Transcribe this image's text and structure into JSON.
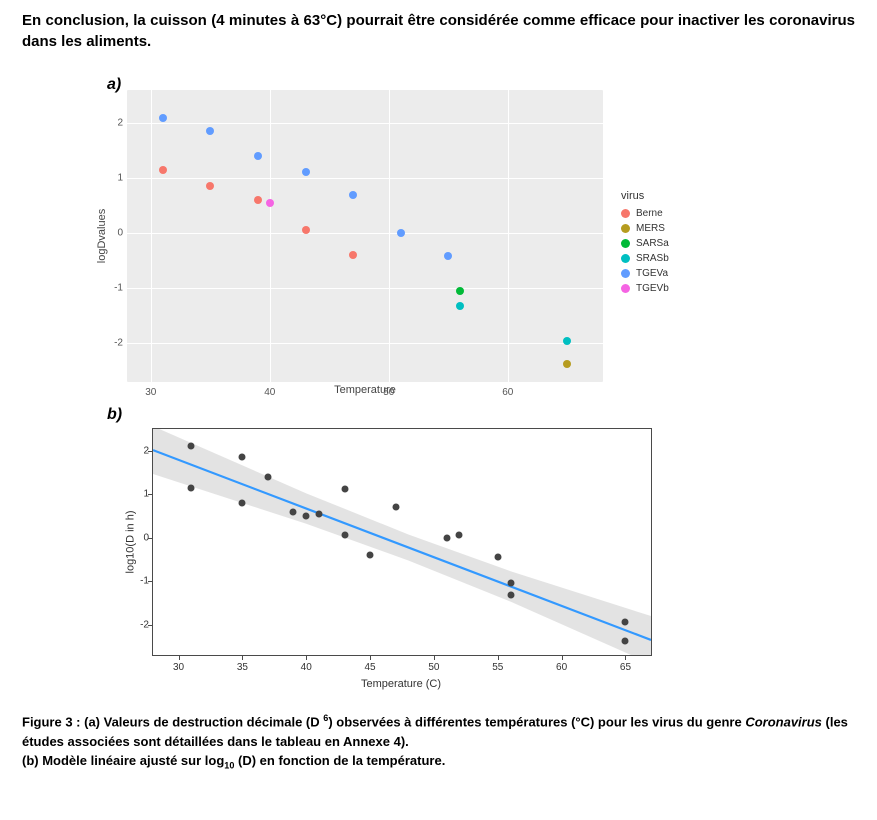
{
  "conclusion_text": "En conclusion, la cuisson (4 minutes à 63°C) pourrait être considérée comme efficace pour inactiver les coronavirus dans les aliments.",
  "panel_a_label": "a)",
  "panel_b_label": "b)",
  "chart_a": {
    "type": "scatter",
    "x_axis_title": "Temperature",
    "y_axis_title": "logDvalues",
    "background_color": "#ececec",
    "gridline_color": "#ffffff",
    "point_radius": 4,
    "xlim": [
      28,
      68
    ],
    "ylim": [
      -2.7,
      2.6
    ],
    "x_ticks": [
      30,
      40,
      50,
      60
    ],
    "y_ticks": [
      -2,
      -1,
      0,
      1,
      2
    ],
    "legend_title": "virus",
    "series": [
      {
        "name": "Berne",
        "color": "#f7776b"
      },
      {
        "name": "MERS",
        "color": "#b69c1f"
      },
      {
        "name": "SARSa",
        "color": "#01ba38"
      },
      {
        "name": "SRASb",
        "color": "#00bfc1"
      },
      {
        "name": "TGEVa",
        "color": "#619cff"
      },
      {
        "name": "TGEVb",
        "color": "#f564e3"
      }
    ],
    "points": [
      {
        "x": 31,
        "y": 2.1,
        "color": "#619cff"
      },
      {
        "x": 31,
        "y": 1.15,
        "color": "#f7776b"
      },
      {
        "x": 35,
        "y": 1.85,
        "color": "#619cff"
      },
      {
        "x": 35,
        "y": 0.85,
        "color": "#f7776b"
      },
      {
        "x": 39,
        "y": 1.4,
        "color": "#619cff"
      },
      {
        "x": 39,
        "y": 0.6,
        "color": "#f7776b"
      },
      {
        "x": 40,
        "y": 0.55,
        "color": "#f564e3"
      },
      {
        "x": 43,
        "y": 1.12,
        "color": "#619cff"
      },
      {
        "x": 43,
        "y": 0.05,
        "color": "#f7776b"
      },
      {
        "x": 47,
        "y": 0.7,
        "color": "#619cff"
      },
      {
        "x": 47,
        "y": -0.4,
        "color": "#f7776b"
      },
      {
        "x": 51,
        "y": 0.0,
        "color": "#619cff"
      },
      {
        "x": 55,
        "y": -0.42,
        "color": "#619cff"
      },
      {
        "x": 56,
        "y": -1.05,
        "color": "#01ba38"
      },
      {
        "x": 56,
        "y": -1.32,
        "color": "#00bfc1"
      },
      {
        "x": 65,
        "y": -1.95,
        "color": "#00bfc1"
      },
      {
        "x": 65,
        "y": -2.37,
        "color": "#b69c1f"
      }
    ]
  },
  "chart_b": {
    "type": "scatter_with_linear_fit",
    "x_axis_title": "Temperature (C)",
    "y_axis_title": "log10(D in h)",
    "background_color": "#ffffff",
    "border_color": "#4a4a4a",
    "point_color": "#444444",
    "point_radius": 3.5,
    "line_color": "#3399ff",
    "line_width": 2.2,
    "ci_fill": "#cccccc",
    "ci_opacity": 0.55,
    "xlim": [
      28,
      67
    ],
    "ylim": [
      -2.7,
      2.5
    ],
    "x_ticks": [
      30,
      35,
      40,
      45,
      50,
      55,
      60,
      65
    ],
    "y_ticks": [
      -2,
      -1,
      0,
      1,
      2
    ],
    "fit_intercept": 5.15,
    "fit_slope": -0.112,
    "points": [
      {
        "x": 31,
        "y": 2.1
      },
      {
        "x": 31,
        "y": 1.15
      },
      {
        "x": 35,
        "y": 1.85
      },
      {
        "x": 35,
        "y": 0.8
      },
      {
        "x": 37,
        "y": 1.4
      },
      {
        "x": 39,
        "y": 0.6
      },
      {
        "x": 40,
        "y": 0.5
      },
      {
        "x": 41,
        "y": 0.55
      },
      {
        "x": 43,
        "y": 1.12
      },
      {
        "x": 43,
        "y": 0.05
      },
      {
        "x": 45,
        "y": -0.4
      },
      {
        "x": 47,
        "y": 0.7
      },
      {
        "x": 51,
        "y": 0.0
      },
      {
        "x": 52,
        "y": 0.05
      },
      {
        "x": 55,
        "y": -0.45
      },
      {
        "x": 56,
        "y": -1.05
      },
      {
        "x": 56,
        "y": -1.32
      },
      {
        "x": 65,
        "y": -1.95
      },
      {
        "x": 65,
        "y": -2.37
      }
    ],
    "ci_offsets": [
      {
        "x": 28,
        "u": 0.55,
        "l": -0.55
      },
      {
        "x": 40,
        "u": 0.35,
        "l": -0.35
      },
      {
        "x": 48,
        "u": 0.3,
        "l": -0.3
      },
      {
        "x": 56,
        "u": 0.35,
        "l": -0.35
      },
      {
        "x": 67,
        "u": 0.55,
        "l": -0.55
      }
    ]
  },
  "caption": {
    "line1_a": "Figure 3 : (a) Valeurs de destruction décimale (D ",
    "line1_sup": "6",
    "line1_b": ") observées à différentes températures (°C) pour les virus du genre ",
    "line1_em": "Coronavirus",
    "line1_c": " (les études associées sont détaillées dans le tableau en Annexe 4).",
    "line2_a": "(b) Modèle linéaire ajusté sur log",
    "line2_sub": "10",
    "line2_b": " (D) en fonction de la température."
  }
}
